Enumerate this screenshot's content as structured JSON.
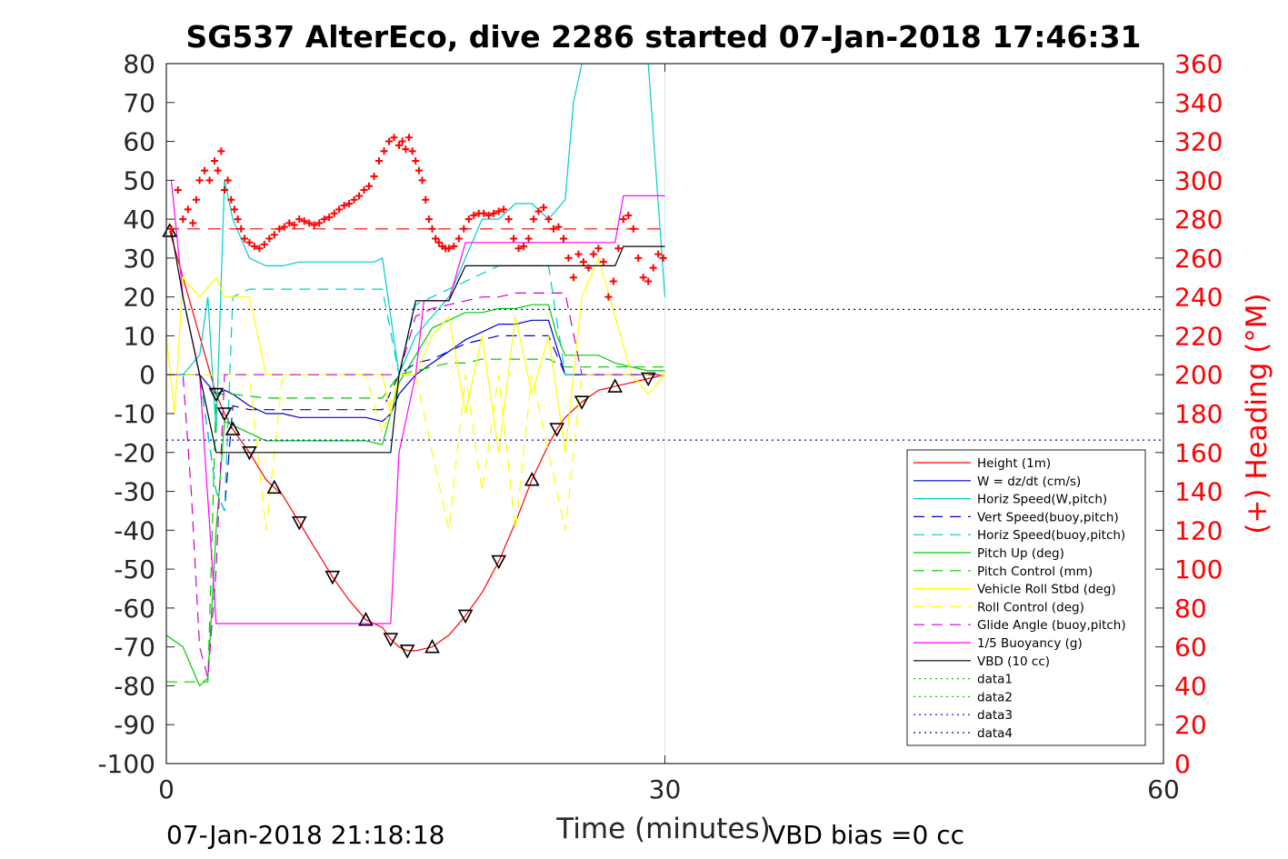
{
  "chart_data": {
    "type": "line",
    "title": "SG537 AlterEco, dive 2286 started 07-Jan-2018 17:46:31",
    "xlabel": "Time (minutes)",
    "ylabel": "",
    "y2label": "(+) Heading (°M)",
    "xlim": [
      0,
      60
    ],
    "ylim": [
      -100,
      80
    ],
    "y2lim": [
      0,
      360
    ],
    "xticks": [
      "0",
      "30",
      "60"
    ],
    "xtick_values": [
      0,
      30,
      60
    ],
    "yticks": [
      "80",
      "70",
      "60",
      "50",
      "40",
      "30",
      "20",
      "10",
      "0",
      "-10",
      "-20",
      "-30",
      "-40",
      "-50",
      "-60",
      "-70",
      "-80",
      "-90",
      "-100"
    ],
    "ytick_values": [
      80,
      70,
      60,
      50,
      40,
      30,
      20,
      10,
      0,
      -10,
      -20,
      -30,
      -40,
      -50,
      -60,
      -70,
      -80,
      -90,
      -100
    ],
    "y2ticks": [
      "360",
      "340",
      "320",
      "300",
      "280",
      "260",
      "240",
      "220",
      "200",
      "180",
      "160",
      "140",
      "120",
      "100",
      "80",
      "60",
      "40",
      "20",
      "0"
    ],
    "y2tick_values": [
      360,
      340,
      320,
      300,
      280,
      260,
      240,
      220,
      200,
      180,
      160,
      140,
      120,
      100,
      80,
      60,
      40,
      20,
      0
    ],
    "footer_left": "07-Jan-2018 21:18:18",
    "footer_right": "VBD bias =0 cc",
    "colors": {
      "axis": "#262626",
      "heading": "#ff0000",
      "grid": "#e6e6e6"
    },
    "legend_position": "bottom-right",
    "series": [
      {
        "name": "Height (1m)",
        "color": "#ff0000",
        "dash": "",
        "x": [
          0.2,
          3,
          3.5,
          4,
          5,
          6,
          6.5,
          7,
          8,
          9,
          10,
          11,
          12,
          13,
          13.5,
          14,
          14.5,
          15,
          16,
          17,
          18,
          19,
          20,
          21,
          22,
          23,
          23.5,
          24,
          25,
          26,
          27,
          28,
          29,
          30
        ],
        "y": [
          37,
          -5,
          -10,
          -14,
          -20,
          -27,
          -29,
          -31,
          -38,
          -45,
          -52,
          -58,
          -63,
          -65,
          -68,
          -70,
          -71,
          -71,
          -70,
          -67,
          -62,
          -56,
          -48,
          -38,
          -27,
          -18,
          -14,
          -11,
          -7,
          -4,
          -3,
          -2,
          -1,
          0
        ]
      },
      {
        "name": "W = dz/dt (cm/s)",
        "color": "#0000cc",
        "dash": "",
        "x": [
          0,
          1,
          2,
          3,
          3.5,
          4,
          5,
          6,
          7,
          8,
          10,
          12,
          13,
          13.5,
          14,
          15,
          16,
          17,
          18,
          19,
          20,
          21,
          22,
          23,
          24,
          25,
          26,
          27,
          28,
          29,
          30
        ],
        "y": [
          0,
          0,
          0,
          -5,
          -4,
          -5,
          -8,
          -10,
          -10,
          -11,
          -11,
          -11,
          -12,
          -10,
          -5,
          0,
          3,
          6,
          9,
          11,
          13,
          13,
          14,
          14,
          0,
          0,
          0,
          0,
          0,
          0,
          0
        ]
      },
      {
        "name": "Horiz Speed(W,pitch)",
        "color": "#00cccc",
        "dash": "",
        "x": [
          0,
          1,
          2,
          2.5,
          3,
          3.5,
          4,
          5,
          6,
          7,
          8,
          10,
          12,
          12.5,
          13,
          14,
          15,
          16,
          17,
          18,
          19,
          20,
          21,
          22,
          23,
          24,
          24.5,
          25,
          26,
          27,
          28,
          29,
          30
        ],
        "y": [
          0,
          0,
          5,
          20,
          -15,
          50,
          40,
          30,
          28,
          28,
          29,
          29,
          29,
          29,
          30,
          0,
          10,
          15,
          20,
          30,
          40,
          40,
          44,
          44,
          40,
          45,
          70,
          80,
          80,
          80,
          80,
          80,
          20
        ]
      },
      {
        "name": "Vert Speed(buoy,pitch)",
        "color": "#0000cc",
        "dash": "12,8",
        "x": [
          0,
          1,
          2,
          3,
          3.5,
          4,
          5,
          6,
          8,
          10,
          12,
          13,
          14,
          15,
          16,
          17,
          18,
          19,
          20,
          21,
          22,
          23,
          24,
          25,
          26,
          27,
          28,
          29,
          30
        ],
        "y": [
          0,
          0,
          0,
          -30,
          -35,
          -8,
          -9,
          -9,
          -9,
          -9,
          -9,
          -9,
          0,
          3,
          4,
          6,
          8,
          9,
          10,
          10,
          10,
          10,
          0,
          0,
          0,
          0,
          0,
          0,
          0
        ]
      },
      {
        "name": "Horiz Speed(buoy,pitch)",
        "color": "#00cccc",
        "dash": "12,8",
        "x": [
          0,
          1,
          2,
          3,
          3.5,
          4,
          5,
          6,
          8,
          10,
          12,
          13,
          14,
          15,
          16,
          17,
          18,
          19,
          20,
          21,
          22,
          23,
          24,
          25,
          26,
          27,
          28,
          29,
          30
        ],
        "y": [
          0,
          0,
          0,
          -30,
          -35,
          20,
          22,
          22,
          22,
          22,
          22,
          22,
          0,
          18,
          20,
          22,
          24,
          26,
          28,
          28,
          28,
          28,
          0,
          0,
          0,
          0,
          0,
          0,
          0
        ]
      },
      {
        "name": "Pitch Up (deg)",
        "color": "#00cc00",
        "dash": "",
        "x": [
          0,
          1,
          1.5,
          2,
          2.5,
          3,
          3.5,
          4,
          5,
          6,
          8,
          10,
          12,
          13,
          14,
          15,
          16,
          17,
          18,
          19,
          20,
          21,
          22,
          23,
          23.5,
          24,
          25,
          26,
          27,
          28,
          29,
          30
        ],
        "y": [
          -67,
          -70,
          -75,
          -80,
          -78,
          -40,
          -12,
          -13,
          -15,
          -17,
          -17,
          -17,
          -17,
          -18,
          -2,
          5,
          12,
          14,
          16,
          16,
          17,
          17,
          18,
          18,
          10,
          5,
          5,
          5,
          3,
          2,
          1,
          1
        ]
      },
      {
        "name": "Pitch Control (mm)",
        "color": "#00cc00",
        "dash": "12,8",
        "x": [
          0,
          1,
          2,
          2.5,
          3,
          3.5,
          4,
          6,
          8,
          10,
          12,
          13,
          14,
          15,
          16,
          17,
          18,
          19,
          20,
          21,
          22,
          23,
          24,
          25,
          26,
          27,
          28,
          29,
          30
        ],
        "y": [
          -79,
          -79,
          -79,
          -79,
          -5,
          -5,
          -5,
          -6,
          -6,
          -6,
          -6,
          -6,
          0,
          1,
          2,
          3,
          3,
          4,
          4,
          4,
          4,
          4,
          2,
          2,
          2,
          2,
          2,
          2,
          2
        ]
      },
      {
        "name": "Vehicle Roll Stbd (deg)",
        "color": "#ffff00",
        "dash": "",
        "x": [
          0,
          0.5,
          1,
          2,
          3,
          3.5,
          4,
          5,
          6,
          7,
          8,
          10,
          12,
          13,
          13.5,
          14,
          15,
          16,
          17,
          18,
          19,
          20,
          21,
          22,
          23,
          24,
          25,
          26,
          27,
          28,
          29,
          30
        ],
        "y": [
          10,
          -10,
          25,
          20,
          25,
          20,
          20,
          20,
          0,
          0,
          0,
          0,
          0,
          0,
          -10,
          0,
          0,
          10,
          15,
          -10,
          10,
          -20,
          15,
          -5,
          10,
          -20,
          20,
          30,
          15,
          0,
          -5,
          0
        ]
      },
      {
        "name": "Roll Control (deg)",
        "color": "#ffff00",
        "dash": "12,8",
        "x": [
          0,
          1,
          2,
          3,
          4,
          5,
          6,
          7,
          8,
          10,
          12,
          13,
          14,
          15,
          16,
          17,
          18,
          19,
          20,
          21,
          22,
          23,
          24,
          25,
          26,
          27,
          28,
          29,
          30
        ],
        "y": [
          0,
          0,
          0,
          0,
          0,
          0,
          -40,
          0,
          0,
          0,
          0,
          -15,
          0,
          0,
          -20,
          -40,
          0,
          -30,
          0,
          -40,
          0,
          -20,
          -40,
          0,
          0,
          0,
          0,
          0,
          0
        ]
      },
      {
        "name": "Glide Angle (buoy,pitch)",
        "color": "#cc00cc",
        "dash": "12,8",
        "x": [
          0,
          1,
          1.5,
          2,
          2.5,
          3,
          3.5,
          4,
          6,
          8,
          10,
          12,
          13,
          14,
          15,
          16,
          17,
          18,
          19,
          20,
          21,
          22,
          23,
          24,
          25,
          26,
          27,
          28,
          29,
          30
        ],
        "y": [
          0,
          0,
          -30,
          -70,
          -78,
          -50,
          0,
          0,
          0,
          0,
          0,
          0,
          0,
          0,
          15,
          17,
          18,
          19,
          20,
          20,
          21,
          21,
          21,
          21,
          0,
          0,
          0,
          0,
          0,
          0
        ]
      },
      {
        "name": "1/5 Buoyancy (g)",
        "color": "#ff00ff",
        "dash": "",
        "x": [
          0.3,
          1,
          2,
          3,
          3.2,
          4,
          6,
          8,
          10,
          12,
          13,
          13.5,
          14,
          15,
          15.5,
          16,
          17,
          18,
          19,
          20,
          21,
          22,
          23,
          24,
          25,
          26,
          27,
          27.5,
          28,
          29,
          30
        ],
        "y": [
          50,
          20,
          0,
          -64,
          -64,
          -64,
          -64,
          -64,
          -64,
          -64,
          -64,
          -64,
          -20,
          0,
          19,
          19,
          19,
          34,
          34,
          34,
          34,
          34,
          34,
          34,
          34,
          34,
          34,
          46,
          46,
          46,
          46
        ]
      },
      {
        "name": "VBD (10 cc)",
        "color": "#000000",
        "dash": "",
        "x": [
          0.3,
          1,
          2,
          3,
          3.2,
          4,
          6,
          8,
          10,
          12,
          13,
          13.5,
          14,
          15,
          15.5,
          16,
          17,
          18,
          19,
          20,
          21,
          22,
          23,
          24,
          25,
          26,
          27,
          27.5,
          28,
          29,
          30
        ],
        "y": [
          37,
          20,
          0,
          -20,
          -20,
          -20,
          -20,
          -20,
          -20,
          -20,
          -20,
          -20,
          0,
          19,
          19,
          19,
          19,
          28,
          28,
          28,
          28,
          28,
          28,
          28,
          28,
          28,
          28,
          33,
          33,
          33,
          33
        ]
      },
      {
        "name": "data1",
        "color": "#00cc00",
        "dash": "2,4",
        "x": [],
        "y": []
      },
      {
        "name": "data2",
        "color": "#00cc00",
        "dash": "2,4",
        "x": [],
        "y": []
      },
      {
        "name": "data3",
        "color": "#0000cc",
        "dash": "2,4",
        "x": [
          0,
          60
        ],
        "y": [
          16.8,
          16.8
        ]
      },
      {
        "name": "data4",
        "color": "#0000cc",
        "dash": "2,4",
        "x": [
          0,
          60
        ],
        "y": [
          -16.8,
          -16.8
        ]
      }
    ],
    "heading_target": {
      "value": 275,
      "color": "#ff0000",
      "dash": "14,9"
    },
    "heading_points": {
      "x": [
        0.3,
        0.7,
        1,
        1.3,
        1.6,
        1.8,
        2,
        2.3,
        2.6,
        2.9,
        3.1,
        3.3,
        3.5,
        3.7,
        3.9,
        4.1,
        4.3,
        4.5,
        4.7,
        5,
        5.3,
        5.6,
        5.9,
        6.2,
        6.5,
        6.8,
        7.1,
        7.4,
        7.7,
        8,
        8.3,
        8.6,
        8.9,
        9.2,
        9.5,
        9.8,
        10.1,
        10.4,
        10.7,
        11,
        11.3,
        11.6,
        11.9,
        12.2,
        12.5,
        12.8,
        13.1,
        13.4,
        13.7,
        14,
        14.2,
        14.4,
        14.6,
        14.8,
        15,
        15.2,
        15.4,
        15.6,
        15.8,
        16,
        16.2,
        16.4,
        16.6,
        16.8,
        17,
        17.3,
        17.6,
        17.9,
        18.2,
        18.5,
        18.8,
        19.1,
        19.4,
        19.7,
        20,
        20.3,
        20.6,
        20.9,
        21.2,
        21.5,
        21.8,
        22.1,
        22.4,
        22.7,
        23,
        23.3,
        23.6,
        23.9,
        24.2,
        24.5,
        24.8,
        25.1,
        25.4,
        25.7,
        26,
        26.3,
        26.6,
        26.9,
        27.2,
        27.5,
        27.8,
        28.1,
        28.4,
        28.7,
        29,
        29.3,
        29.6,
        29.9
      ],
      "y": [
        275,
        295,
        280,
        285,
        278,
        290,
        300,
        305,
        300,
        310,
        305,
        315,
        295,
        300,
        290,
        285,
        280,
        275,
        270,
        268,
        266,
        265,
        267,
        270,
        272,
        275,
        276,
        278,
        277,
        280,
        279,
        278,
        277,
        278,
        280,
        281,
        283,
        285,
        287,
        288,
        290,
        292,
        295,
        297,
        302,
        310,
        315,
        320,
        322,
        318,
        320,
        316,
        322,
        315,
        310,
        305,
        300,
        290,
        280,
        275,
        270,
        268,
        266,
        265,
        265,
        266,
        270,
        275,
        280,
        282,
        283,
        283,
        282,
        283,
        284,
        285,
        280,
        270,
        265,
        266,
        270,
        280,
        284,
        286,
        280,
        275,
        276,
        270,
        260,
        250,
        262,
        258,
        255,
        262,
        265,
        258,
        240,
        248,
        265,
        280,
        282,
        275,
        260,
        250,
        248,
        255,
        262,
        260
      ]
    }
  }
}
